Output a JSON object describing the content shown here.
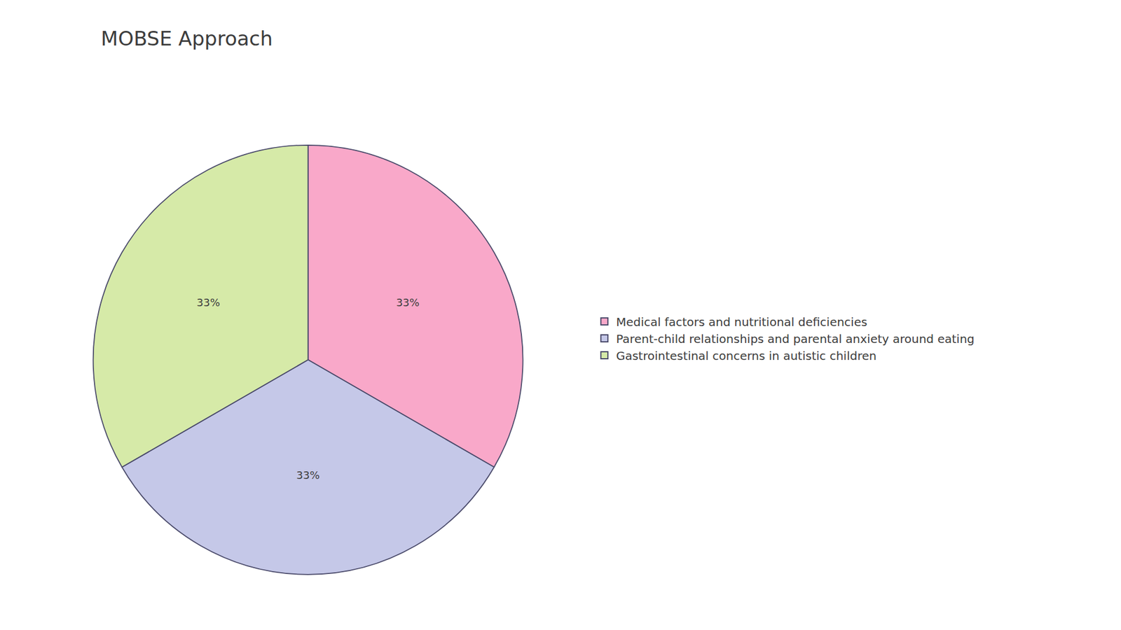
{
  "chart_data": {
    "type": "pie",
    "title": "MOBSE Approach",
    "categories": [
      "Medical factors and nutritional deficiencies",
      "Parent-child relationships and parental anxiety around eating",
      "Gastrointestinal concerns in autistic children"
    ],
    "values": [
      33,
      33,
      33
    ],
    "value_labels": [
      "33%",
      "33%",
      "33%"
    ],
    "colors": [
      "#F9A8C9",
      "#C5C8E8",
      "#D6EAA8"
    ],
    "data_labels": true,
    "legend": "right"
  }
}
